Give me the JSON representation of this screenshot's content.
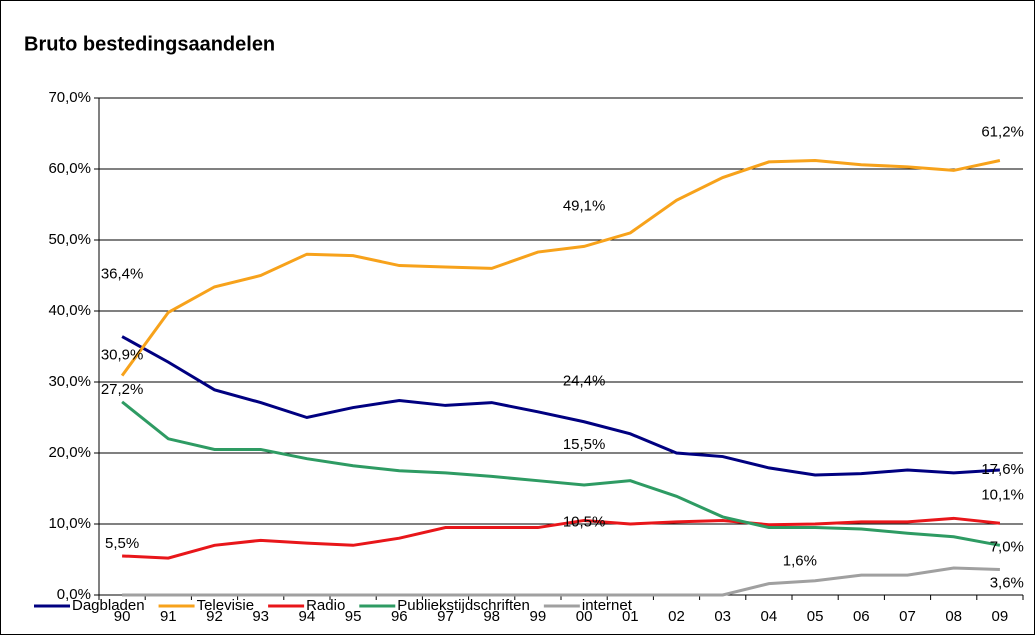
{
  "chart_data": {
    "type": "line",
    "title": "Bruto bestedingsaandelen",
    "categories": [
      "90",
      "91",
      "92",
      "93",
      "94",
      "95",
      "96",
      "97",
      "98",
      "99",
      "00",
      "01",
      "02",
      "03",
      "04",
      "05",
      "06",
      "07",
      "08",
      "09"
    ],
    "ylim": [
      0,
      70
    ],
    "yticks": [
      {
        "value": 0,
        "label": "0,0%"
      },
      {
        "value": 10,
        "label": "10,0%"
      },
      {
        "value": 20,
        "label": "20,0%"
      },
      {
        "value": 30,
        "label": "30,0%"
      },
      {
        "value": 40,
        "label": "40,0%"
      },
      {
        "value": 50,
        "label": "50,0%"
      },
      {
        "value": 60,
        "label": "60,0%"
      },
      {
        "value": 70,
        "label": "70,0%"
      }
    ],
    "grid": true,
    "legend": "bottom",
    "series": [
      {
        "name": "Dagbladen",
        "color": "#000080",
        "values": [
          36.4,
          32.8,
          28.9,
          27.1,
          25.0,
          26.4,
          27.4,
          26.7,
          27.1,
          25.8,
          24.4,
          22.7,
          20.0,
          19.5,
          17.9,
          16.9,
          17.1,
          17.6,
          17.2,
          17.6
        ],
        "value_labels": [
          "36,4%",
          null,
          null,
          null,
          null,
          null,
          null,
          null,
          null,
          null,
          "24,4%",
          null,
          null,
          null,
          null,
          null,
          null,
          null,
          null,
          "17,6%"
        ]
      },
      {
        "name": "Televisie",
        "color": "#f7a21b",
        "values": [
          30.9,
          39.8,
          43.4,
          45.0,
          48.0,
          47.8,
          46.4,
          46.2,
          46.0,
          48.3,
          49.1,
          51.0,
          55.6,
          58.8,
          61.0,
          61.2,
          60.6,
          60.3,
          59.8,
          61.2
        ],
        "value_labels": [
          "30,9%",
          null,
          null,
          null,
          null,
          null,
          null,
          null,
          null,
          null,
          "49,1%",
          null,
          null,
          null,
          null,
          null,
          null,
          null,
          null,
          "61,2%"
        ]
      },
      {
        "name": "Radio",
        "color": "#e8161a",
        "values": [
          5.5,
          5.2,
          7.0,
          7.7,
          7.3,
          7.0,
          8.0,
          9.5,
          9.5,
          9.5,
          10.5,
          10.0,
          10.3,
          10.5,
          9.9,
          10.0,
          10.3,
          10.3,
          10.8,
          10.1
        ],
        "value_labels": [
          "5,5%",
          null,
          null,
          null,
          null,
          null,
          null,
          null,
          null,
          null,
          "10,5%",
          null,
          null,
          null,
          null,
          null,
          null,
          null,
          null,
          "10,1%"
        ]
      },
      {
        "name": "Publiekstijdschriften",
        "color": "#2e9b63",
        "values": [
          27.2,
          22.0,
          20.5,
          20.5,
          19.2,
          18.2,
          17.5,
          17.2,
          16.7,
          16.1,
          15.5,
          16.1,
          13.9,
          11.0,
          9.5,
          9.5,
          9.3,
          8.7,
          8.2,
          7.0
        ],
        "value_labels": [
          "27,2%",
          null,
          null,
          null,
          null,
          null,
          null,
          null,
          null,
          null,
          "15,5%",
          null,
          null,
          null,
          null,
          null,
          null,
          null,
          null,
          "7,0%"
        ]
      },
      {
        "name": "internet",
        "color": "#a0a0a0",
        "values": [
          0,
          0,
          0,
          0,
          0,
          0,
          0,
          0,
          0,
          0,
          0,
          0,
          0,
          0,
          1.6,
          2.0,
          2.8,
          2.8,
          3.8,
          3.6
        ],
        "value_labels": [
          null,
          null,
          null,
          null,
          null,
          null,
          null,
          null,
          null,
          null,
          null,
          null,
          null,
          null,
          "1,6%",
          null,
          null,
          null,
          null,
          "3,6%"
        ]
      }
    ]
  }
}
